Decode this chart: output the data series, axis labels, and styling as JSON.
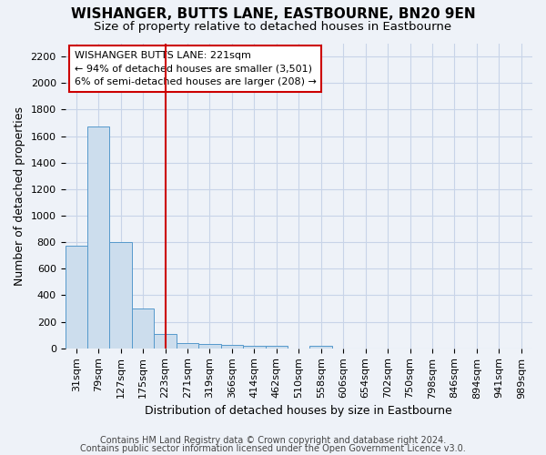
{
  "title": "WISHANGER, BUTTS LANE, EASTBOURNE, BN20 9EN",
  "subtitle": "Size of property relative to detached houses in Eastbourne",
  "xlabel": "Distribution of detached houses by size in Eastbourne",
  "ylabel": "Number of detached properties",
  "footnote1": "Contains HM Land Registry data © Crown copyright and database right 2024.",
  "footnote2": "Contains public sector information licensed under the Open Government Licence v3.0.",
  "bin_labels": [
    "31sqm",
    "79sqm",
    "127sqm",
    "175sqm",
    "223sqm",
    "271sqm",
    "319sqm",
    "366sqm",
    "414sqm",
    "462sqm",
    "510sqm",
    "558sqm",
    "606sqm",
    "654sqm",
    "702sqm",
    "750sqm",
    "798sqm",
    "846sqm",
    "894sqm",
    "941sqm",
    "989sqm"
  ],
  "bar_values": [
    775,
    1675,
    800,
    300,
    110,
    40,
    30,
    25,
    20,
    20,
    0,
    20,
    0,
    0,
    0,
    0,
    0,
    0,
    0,
    0,
    0
  ],
  "bar_color": "#ccdded",
  "bar_edge_color": "#5599cc",
  "vline_x_idx": 4,
  "vline_color": "#cc0000",
  "annotation_line1": "WISHANGER BUTTS LANE: 221sqm",
  "annotation_line2": "← 94% of detached houses are smaller (3,501)",
  "annotation_line3": "6% of semi-detached houses are larger (208) →",
  "annotation_box_color": "#ffffff",
  "annotation_box_edge": "#cc0000",
  "ylim": [
    0,
    2300
  ],
  "yticks": [
    0,
    200,
    400,
    600,
    800,
    1000,
    1200,
    1400,
    1600,
    1800,
    2000,
    2200
  ],
  "grid_color": "#c8d4e8",
  "background_color": "#eef2f8",
  "title_fontsize": 11,
  "subtitle_fontsize": 9.5,
  "axis_label_fontsize": 9,
  "tick_fontsize": 8,
  "footnote_fontsize": 7
}
